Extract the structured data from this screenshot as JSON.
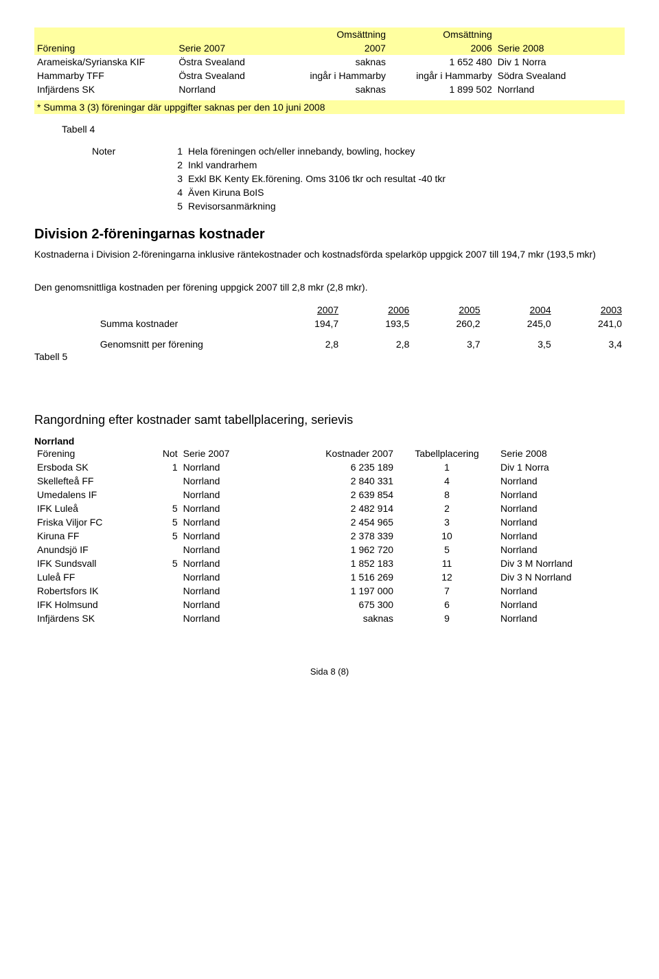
{
  "colors": {
    "highlight_bg": "#ffffa0",
    "text": "#000000",
    "page_bg": "#ffffff"
  },
  "typography": {
    "body_font": "Arial",
    "body_size_pt": 11,
    "h2_size_pt": 16,
    "section_size_pt": 14
  },
  "top_table": {
    "headers": {
      "forening": "Förening",
      "serie2007": "Serie 2007",
      "oms_label_top": "Omsättning",
      "oms2007": "2007",
      "oms2006": "2006",
      "serie2008": "Serie 2008"
    },
    "col_widths_pct": [
      24,
      18,
      18,
      18,
      22
    ],
    "rows": [
      {
        "forening": "Arameiska/Syrianska KIF",
        "serie2007": "Östra Svealand",
        "oms2007": "saknas",
        "oms2006": "1 652 480",
        "serie2008": "Div 1 Norra"
      },
      {
        "forening": "Hammarby TFF",
        "serie2007": "Östra Svealand",
        "oms2007": "ingår i Hammarby",
        "oms2006": "ingår i Hammarby",
        "serie2008": "Södra Svealand"
      },
      {
        "forening": "Infjärdens SK",
        "serie2007": "Norrland",
        "oms2007": "saknas",
        "oms2006": "1 899 502",
        "serie2008": "Norrland"
      }
    ]
  },
  "summa_note": "* Summa 3 (3) föreningar där uppgifter saknas per den 10 juni 2008",
  "tabell4_label": "Tabell 4",
  "noter_label": "Noter",
  "noter": [
    {
      "n": "1",
      "text": "Hela föreningen och/eller innebandy, bowling, hockey"
    },
    {
      "n": "2",
      "text": "Inkl vandrarhem"
    },
    {
      "n": "3",
      "text": "Exkl BK Kenty Ek.förening. Oms 3106 tkr och resultat -40 tkr"
    },
    {
      "n": "4",
      "text": "Även Kiruna BoIS"
    },
    {
      "n": "5",
      "text": "Revisorsanmärkning"
    }
  ],
  "h2_division": "Division 2-föreningarnas kostnader",
  "para1": "Kostnaderna i Division 2-föreningarna inklusive räntekostnader och kostnadsförda spelarköp uppgick 2007 till 194,7 mkr (193,5 mkr)",
  "para2": "Den genomsnittliga kostnaden per förening uppgick 2007 till 2,8 mkr (2,8 mkr).",
  "summary_table": {
    "years": [
      "2007",
      "2006",
      "2005",
      "2004",
      "2003"
    ],
    "row1_label": "Summa kostnader",
    "row1_vals": [
      "194,7",
      "193,5",
      "260,2",
      "245,0",
      "241,0"
    ],
    "row2_label": "Genomsnitt per förening",
    "row2_vals": [
      "2,8",
      "2,8",
      "3,7",
      "3,5",
      "3,4"
    ]
  },
  "tabell5_label": "Tabell 5",
  "rangordning_title": "Rangordning efter kostnader samt tabellplacering, serievis",
  "norrland_heading": "Norrland",
  "kost_table": {
    "headers": {
      "forening": "Förening",
      "not": "Not",
      "serie2007": "Serie 2007",
      "kost2007": "Kostnader 2007",
      "tabell": "Tabellplacering",
      "serie2008": "Serie 2008"
    },
    "col_widths_pct": [
      18,
      5,
      16,
      18,
      14,
      20
    ],
    "rows": [
      {
        "forening": "Ersboda SK",
        "not": "1",
        "serie2007": "Norrland",
        "kost2007": "6 235 189",
        "tabell": "1",
        "serie2008": "Div 1 Norra"
      },
      {
        "forening": "Skellefteå FF",
        "not": "",
        "serie2007": "Norrland",
        "kost2007": "2 840 331",
        "tabell": "4",
        "serie2008": "Norrland"
      },
      {
        "forening": "Umedalens IF",
        "not": "",
        "serie2007": "Norrland",
        "kost2007": "2 639 854",
        "tabell": "8",
        "serie2008": "Norrland"
      },
      {
        "forening": "IFK Luleå",
        "not": "5",
        "serie2007": "Norrland",
        "kost2007": "2 482 914",
        "tabell": "2",
        "serie2008": "Norrland"
      },
      {
        "forening": "Friska Viljor FC",
        "not": "5",
        "serie2007": "Norrland",
        "kost2007": "2 454 965",
        "tabell": "3",
        "serie2008": "Norrland"
      },
      {
        "forening": "Kiruna FF",
        "not": "5",
        "serie2007": "Norrland",
        "kost2007": "2 378 339",
        "tabell": "10",
        "serie2008": "Norrland"
      },
      {
        "forening": "Anundsjö IF",
        "not": "",
        "serie2007": "Norrland",
        "kost2007": "1 962 720",
        "tabell": "5",
        "serie2008": "Norrland"
      },
      {
        "forening": "IFK Sundsvall",
        "not": "5",
        "serie2007": "Norrland",
        "kost2007": "1 852 183",
        "tabell": "11",
        "serie2008": "Div 3 M Norrland"
      },
      {
        "forening": "Luleå FF",
        "not": "",
        "serie2007": "Norrland",
        "kost2007": "1 516 269",
        "tabell": "12",
        "serie2008": "Div 3 N Norrland"
      },
      {
        "forening": "Robertsfors IK",
        "not": "",
        "serie2007": "Norrland",
        "kost2007": "1 197 000",
        "tabell": "7",
        "serie2008": "Norrland"
      },
      {
        "forening": "IFK Holmsund",
        "not": "",
        "serie2007": "Norrland",
        "kost2007": "675 300",
        "tabell": "6",
        "serie2008": "Norrland"
      },
      {
        "forening": "Infjärdens SK",
        "not": "",
        "serie2007": "Norrland",
        "kost2007": "saknas",
        "tabell": "9",
        "serie2008": "Norrland"
      }
    ]
  },
  "footer": "Sida 8 (8)"
}
